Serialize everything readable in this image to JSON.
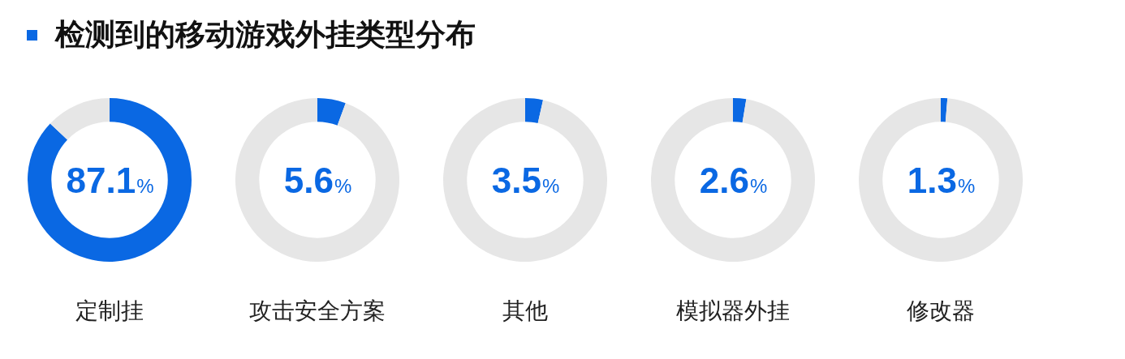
{
  "chart_data": [
    {
      "type": "other",
      "title": "检测到的移动游戏外挂类型分布"
    },
    {
      "type": "donut",
      "title": "定制挂",
      "values": [
        87.1,
        12.9
      ],
      "colors": [
        "#0a68e3",
        "#e6e6e6"
      ],
      "annotations": [
        "87.1%"
      ]
    },
    {
      "type": "donut",
      "title": "攻击安全方案",
      "values": [
        5.6,
        94.4
      ],
      "colors": [
        "#0a68e3",
        "#e6e6e6"
      ],
      "annotations": [
        "5.6%"
      ]
    },
    {
      "type": "donut",
      "title": "其他",
      "values": [
        3.5,
        96.5
      ],
      "colors": [
        "#0a68e3",
        "#e6e6e6"
      ],
      "annotations": [
        "3.5%"
      ]
    },
    {
      "type": "donut",
      "title": "模拟器外挂",
      "values": [
        2.6,
        97.4
      ],
      "colors": [
        "#0a68e3",
        "#e6e6e6"
      ],
      "annotations": [
        "2.6%"
      ]
    },
    {
      "type": "donut",
      "title": "修改器",
      "values": [
        1.3,
        98.7
      ],
      "colors": [
        "#0a68e3",
        "#e6e6e6"
      ],
      "annotations": [
        "1.3%"
      ]
    }
  ]
}
